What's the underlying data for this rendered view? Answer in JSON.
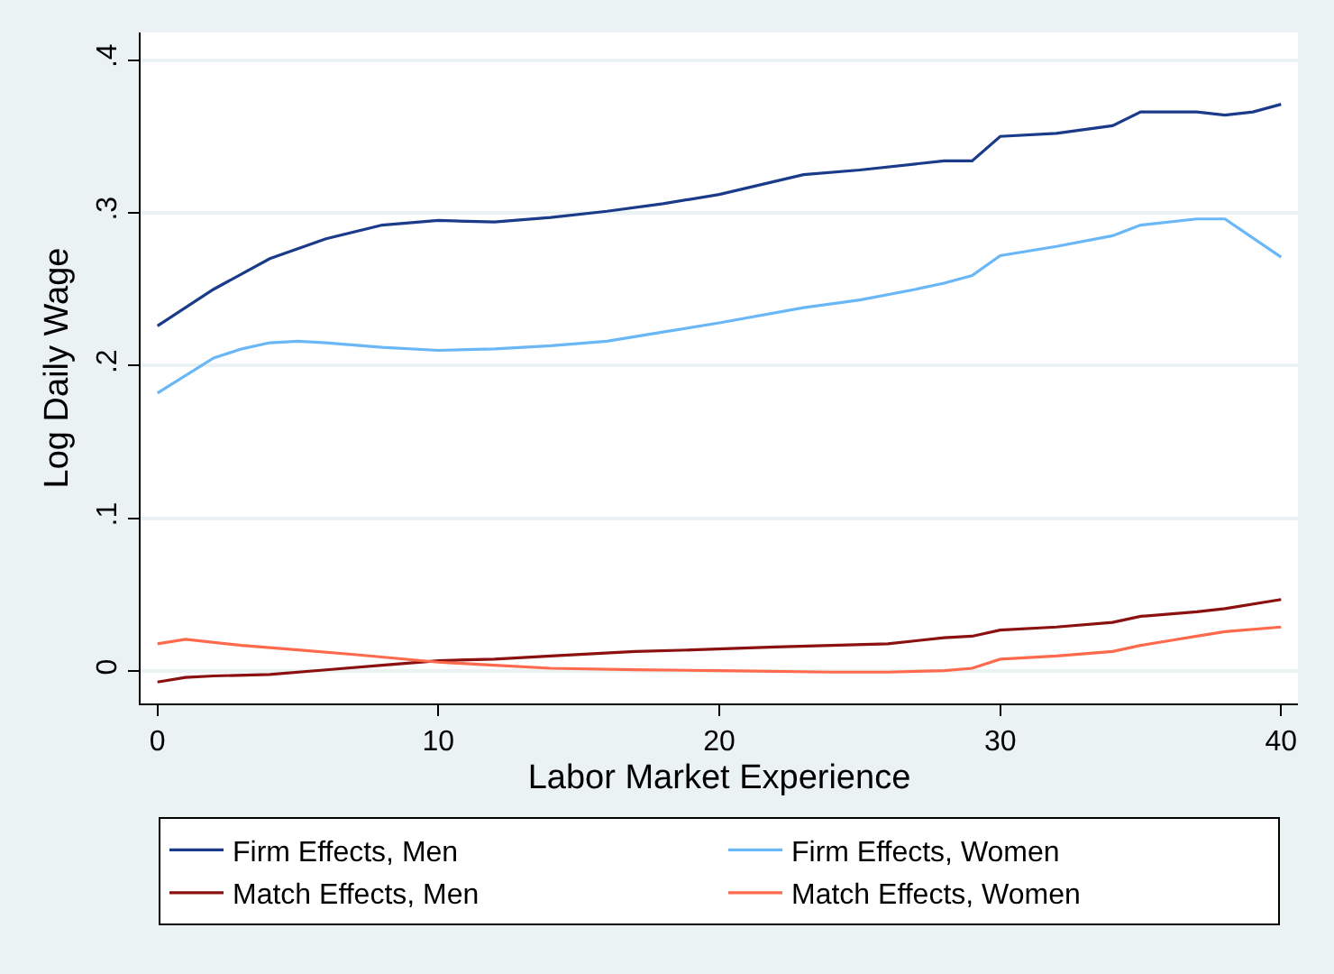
{
  "chart_data": {
    "type": "line",
    "xlabel": "Labor Market Experience",
    "ylabel": "Log Daily Wage",
    "xlim": [
      -0.6,
      40.6
    ],
    "xticks": [
      0,
      10,
      20,
      30,
      40
    ],
    "ylim": [
      -0.021,
      0.418
    ],
    "yticks": [
      0,
      {
        "value": 0.1,
        "label": ".1"
      },
      {
        "value": 0.2,
        "label": ".2"
      },
      {
        "value": 0.3,
        "label": ".3"
      },
      {
        "value": 0.4,
        "label": ".4"
      }
    ],
    "grid": "y",
    "legend": "bottom",
    "marker": "none",
    "line_style": "solid",
    "series": [
      {
        "name": "Firm Effects, Men",
        "color": "#1a3a8a",
        "x": [
          0,
          2,
          4,
          6,
          8,
          10,
          12,
          14,
          16,
          18,
          20,
          23,
          25,
          28,
          29,
          30,
          32,
          34,
          35,
          37,
          38,
          39,
          40
        ],
        "values": [
          0.226,
          0.25,
          0.27,
          0.283,
          0.292,
          0.295,
          0.294,
          0.297,
          0.301,
          0.306,
          0.312,
          0.325,
          0.328,
          0.334,
          0.334,
          0.35,
          0.352,
          0.357,
          0.366,
          0.366,
          0.364,
          0.366,
          0.371
        ]
      },
      {
        "name": "Firm Effects, Women",
        "color": "#6ab7f7",
        "x": [
          0,
          2,
          3,
          4,
          5,
          6,
          8,
          10,
          12,
          14,
          16,
          18,
          20,
          23,
          25,
          27,
          28,
          29,
          30,
          32,
          34,
          35,
          37,
          38,
          40
        ],
        "values": [
          0.182,
          0.205,
          0.211,
          0.215,
          0.216,
          0.215,
          0.212,
          0.21,
          0.211,
          0.213,
          0.216,
          0.222,
          0.228,
          0.238,
          0.243,
          0.25,
          0.254,
          0.259,
          0.272,
          0.278,
          0.285,
          0.292,
          0.296,
          0.296,
          0.271
        ]
      },
      {
        "name": "Match Effects, Men",
        "color": "#8b1010",
        "x": [
          0,
          1,
          2,
          4,
          6,
          8,
          10,
          12,
          14,
          17,
          19,
          22,
          24,
          26,
          27,
          28,
          29,
          30,
          32,
          34,
          35,
          37,
          38,
          40
        ],
        "values": [
          -0.007,
          -0.004,
          -0.003,
          -0.002,
          0.001,
          0.004,
          0.007,
          0.008,
          0.01,
          0.013,
          0.014,
          0.016,
          0.017,
          0.018,
          0.02,
          0.022,
          0.023,
          0.027,
          0.029,
          0.032,
          0.036,
          0.039,
          0.041,
          0.047
        ]
      },
      {
        "name": "Match Effects, Women",
        "color": "#ff6a4d",
        "x": [
          0,
          1,
          3,
          5,
          7,
          10,
          12,
          14,
          17,
          20,
          24,
          26,
          28,
          29,
          30,
          32,
          34,
          35,
          36,
          37,
          38,
          40
        ],
        "values": [
          0.018,
          0.021,
          0.017,
          0.014,
          0.011,
          0.006,
          0.004,
          0.002,
          0.001,
          0.0005,
          -0.0005,
          -0.0005,
          0.0005,
          0.002,
          0.008,
          0.01,
          0.013,
          0.017,
          0.02,
          0.023,
          0.026,
          0.029
        ]
      }
    ]
  }
}
